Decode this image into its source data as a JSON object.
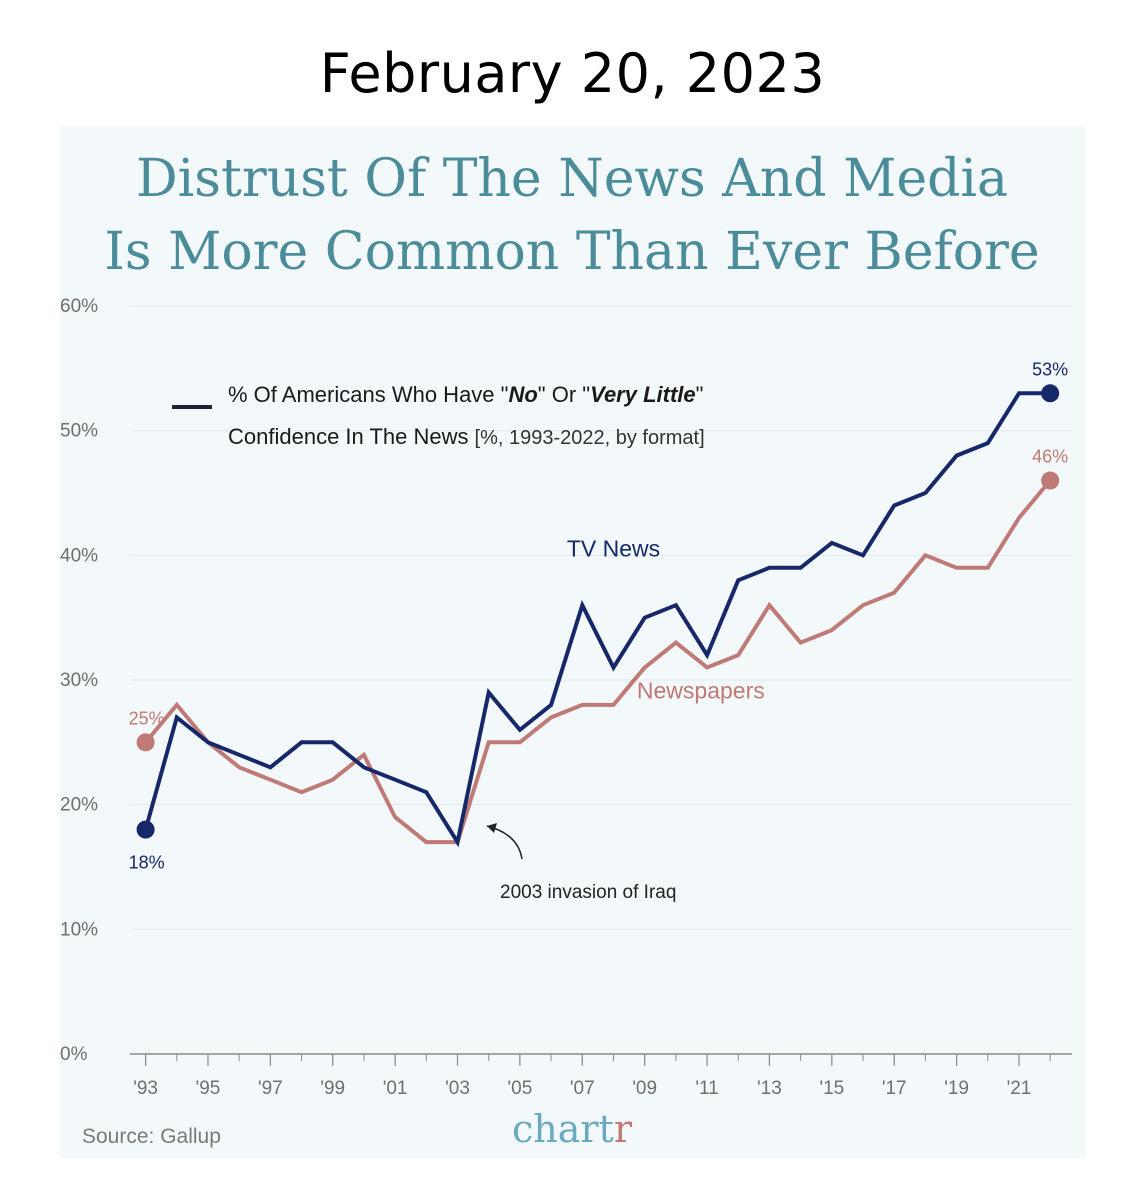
{
  "header": {
    "date": "February 20, 2023"
  },
  "chart_data": {
    "type": "line",
    "title_lines": [
      "Distrust Of The News And Media",
      "Is More Common Than Ever Before"
    ],
    "legend": {
      "line1_prefix": "% Of Americans Who Have \"",
      "line1_no": "No",
      "line1_mid": "\" Or \"",
      "line1_very_little": "Very Little",
      "line1_suffix": "\"",
      "line2_main": "Confidence In The News",
      "line2_sub": "[%, 1993-2022, by format]",
      "position": "top-left"
    },
    "y_ticks": [
      "0%",
      "10%",
      "20%",
      "30%",
      "40%",
      "50%",
      "60%"
    ],
    "x_ticks": [
      "'93",
      "'95",
      "'97",
      "'99",
      "'01",
      "'03",
      "'05",
      "'07",
      "'09",
      "'11",
      "'13",
      "'15",
      "'17",
      "'19",
      "'21"
    ],
    "ylim": [
      0,
      60
    ],
    "xlim": [
      1992.5,
      2022.7
    ],
    "grid": true,
    "x": [
      1993,
      1994,
      1995,
      1996,
      1997,
      1998,
      1999,
      2000,
      2001,
      2002,
      2003,
      2004,
      2005,
      2006,
      2007,
      2008,
      2009,
      2010,
      2011,
      2012,
      2013,
      2014,
      2015,
      2016,
      2017,
      2018,
      2019,
      2020,
      2021,
      2022
    ],
    "series": [
      {
        "name": "TV News",
        "color": "#16286a",
        "values": [
          18,
          27,
          25,
          24,
          23,
          25,
          25,
          23,
          22,
          21,
          17,
          29,
          26,
          28,
          36,
          31,
          35,
          36,
          32,
          38,
          39,
          39,
          41,
          40,
          44,
          45,
          48,
          49,
          53,
          53
        ],
        "start_label": "18%",
        "end_label": "53%"
      },
      {
        "name": "Newspapers",
        "color": "#c07a76",
        "values": [
          25,
          28,
          25,
          23,
          22,
          21,
          22,
          24,
          19,
          17,
          17,
          25,
          25,
          27,
          28,
          28,
          31,
          33,
          31,
          32,
          36,
          33,
          34,
          36,
          37,
          40,
          39,
          39,
          43,
          46
        ],
        "start_label": "25%",
        "end_label": "46%"
      }
    ],
    "annotation": {
      "text": "2003 invasion of Iraq"
    },
    "source": "Source: Gallup",
    "brand": {
      "main": "chart",
      "accent": "r",
      "main_color": "#6aa9c0",
      "accent_color": "#c07a76"
    }
  }
}
